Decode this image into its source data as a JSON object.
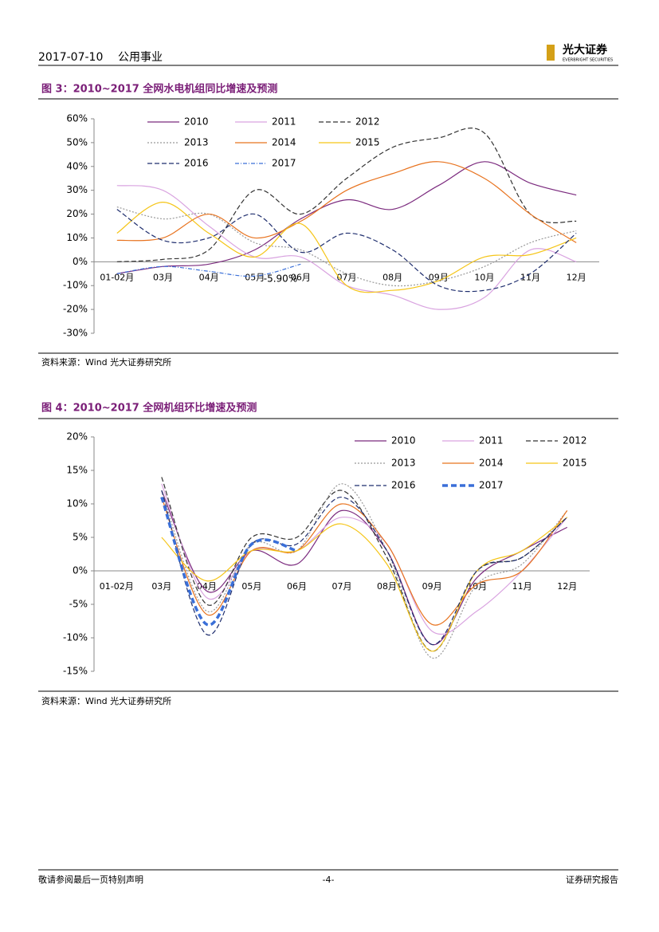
{
  "header": {
    "date": "2017-07-10",
    "sector": "公用事业",
    "logo": "光大证券",
    "logo_sub": "EVERBRIGHT SECURITIES"
  },
  "chart_data": [
    {
      "type": "line",
      "title": "图 3：2010~2017 全网水电机组同比增速及预测",
      "categories": [
        "01-02月",
        "03月",
        "04月",
        "05月",
        "06月",
        "07月",
        "08月",
        "09月",
        "10月",
        "11月",
        "12月"
      ],
      "ylim": [
        -30,
        60
      ],
      "yticks": [
        {
          "value": -30,
          "label": "-30%"
        },
        {
          "value": -20,
          "label": "-20%"
        },
        {
          "value": -10,
          "label": "-10%"
        },
        {
          "value": 0,
          "label": "0%"
        },
        {
          "value": 10,
          "label": "10%"
        },
        {
          "value": 20,
          "label": "20%"
        },
        {
          "value": 30,
          "label": "30%"
        },
        {
          "value": 40,
          "label": "40%"
        },
        {
          "value": 50,
          "label": "50%"
        },
        {
          "value": 60,
          "label": "60%"
        }
      ],
      "legend": "upper left",
      "annotations": [
        "-5.90%"
      ],
      "series": [
        {
          "name": "2010",
          "color": "#7b2a7e",
          "style": "solid",
          "values": [
            -5,
            -2,
            -1,
            5,
            18,
            26,
            22,
            32,
            42,
            33,
            28
          ]
        },
        {
          "name": "2011",
          "color": "#d9a3e0",
          "style": "solid",
          "values": [
            32,
            30,
            15,
            2,
            2,
            -10,
            -14,
            -20,
            -15,
            5,
            0
          ]
        },
        {
          "name": "2012",
          "color": "#333333",
          "style": "dashed",
          "values": [
            0,
            1,
            5,
            30,
            20,
            35,
            48,
            52,
            54,
            20,
            17
          ]
        },
        {
          "name": "2013",
          "color": "#999999",
          "style": "dotted",
          "values": [
            23,
            18,
            20,
            8,
            5,
            -5,
            -10,
            -8,
            -2,
            8,
            13
          ]
        },
        {
          "name": "2014",
          "color": "#e8731f",
          "style": "solid",
          "values": [
            9,
            10,
            20,
            10,
            17,
            30,
            37,
            42,
            35,
            20,
            8
          ]
        },
        {
          "name": "2015",
          "color": "#f5c518",
          "style": "solid",
          "values": [
            12,
            25,
            12,
            2,
            16,
            -10,
            -12,
            -8,
            2,
            3,
            10
          ]
        },
        {
          "name": "2016",
          "color": "#1f2e6e",
          "style": "dashed",
          "values": [
            22,
            9,
            10,
            20,
            4,
            12,
            5,
            -10,
            -12,
            -5,
            12
          ]
        },
        {
          "name": "2017",
          "color": "#3a6fd8",
          "style": "dashdot",
          "values": [
            -5,
            -2,
            -4,
            -6,
            -1,
            null,
            null,
            null,
            null,
            null,
            null
          ]
        }
      ]
    },
    {
      "type": "line",
      "title": "图 4：2010~2017 全网机组环比增速及预测",
      "categories": [
        "01-02月",
        "03月",
        "04月",
        "05月",
        "06月",
        "07月",
        "08月",
        "09月",
        "10月",
        "11月",
        "12月"
      ],
      "ylim": [
        -15,
        20
      ],
      "yticks": [
        {
          "value": -15,
          "label": "-15%"
        },
        {
          "value": -10,
          "label": "-10%"
        },
        {
          "value": -5,
          "label": "-5%"
        },
        {
          "value": 0,
          "label": "0%"
        },
        {
          "value": 5,
          "label": "5%"
        },
        {
          "value": 10,
          "label": "10%"
        },
        {
          "value": 15,
          "label": "15%"
        },
        {
          "value": 20,
          "label": "20%"
        }
      ],
      "legend": "upper right",
      "series": [
        {
          "name": "2010",
          "color": "#7b2a7e",
          "style": "solid",
          "values": [
            null,
            12,
            -3,
            3,
            1,
            9,
            3,
            -11,
            -1,
            3,
            6.5
          ]
        },
        {
          "name": "2011",
          "color": "#d9a3e0",
          "style": "solid",
          "values": [
            null,
            13,
            -4,
            3,
            3,
            8,
            4,
            -9,
            -6,
            0,
            8
          ]
        },
        {
          "name": "2012",
          "color": "#333333",
          "style": "dashed",
          "values": [
            null,
            14,
            -5,
            5,
            5,
            12,
            2,
            -12,
            0,
            2,
            8
          ]
        },
        {
          "name": "2013",
          "color": "#999999",
          "style": "dotted",
          "values": [
            null,
            12,
            -6,
            4,
            3,
            13,
            3,
            -13,
            -2,
            1,
            9
          ]
        },
        {
          "name": "2014",
          "color": "#e8731f",
          "style": "solid",
          "values": [
            null,
            11,
            -6.5,
            3,
            3,
            10,
            4,
            -8,
            -2,
            0,
            9
          ]
        },
        {
          "name": "2015",
          "color": "#f5c518",
          "style": "solid",
          "values": [
            null,
            5,
            -1.5,
            3,
            3,
            7,
            1,
            -12,
            0,
            3,
            8
          ]
        },
        {
          "name": "2016",
          "color": "#1f2e6e",
          "style": "dashed",
          "values": [
            null,
            12,
            -9.5,
            4,
            4,
            11,
            3,
            -11,
            0,
            2,
            8
          ]
        },
        {
          "name": "2017",
          "color": "#3a6fd8",
          "style": "thickdash",
          "values": [
            null,
            11,
            -8,
            4,
            3,
            null,
            null,
            null,
            null,
            null,
            null
          ]
        }
      ]
    }
  ],
  "sources": [
    "资料来源：Wind 光大证券研究所",
    "资料来源：Wind 光大证券研究所"
  ],
  "footer": {
    "left": "敬请参阅最后一页特别声明",
    "page": "-4-",
    "right": "证券研究报告"
  }
}
